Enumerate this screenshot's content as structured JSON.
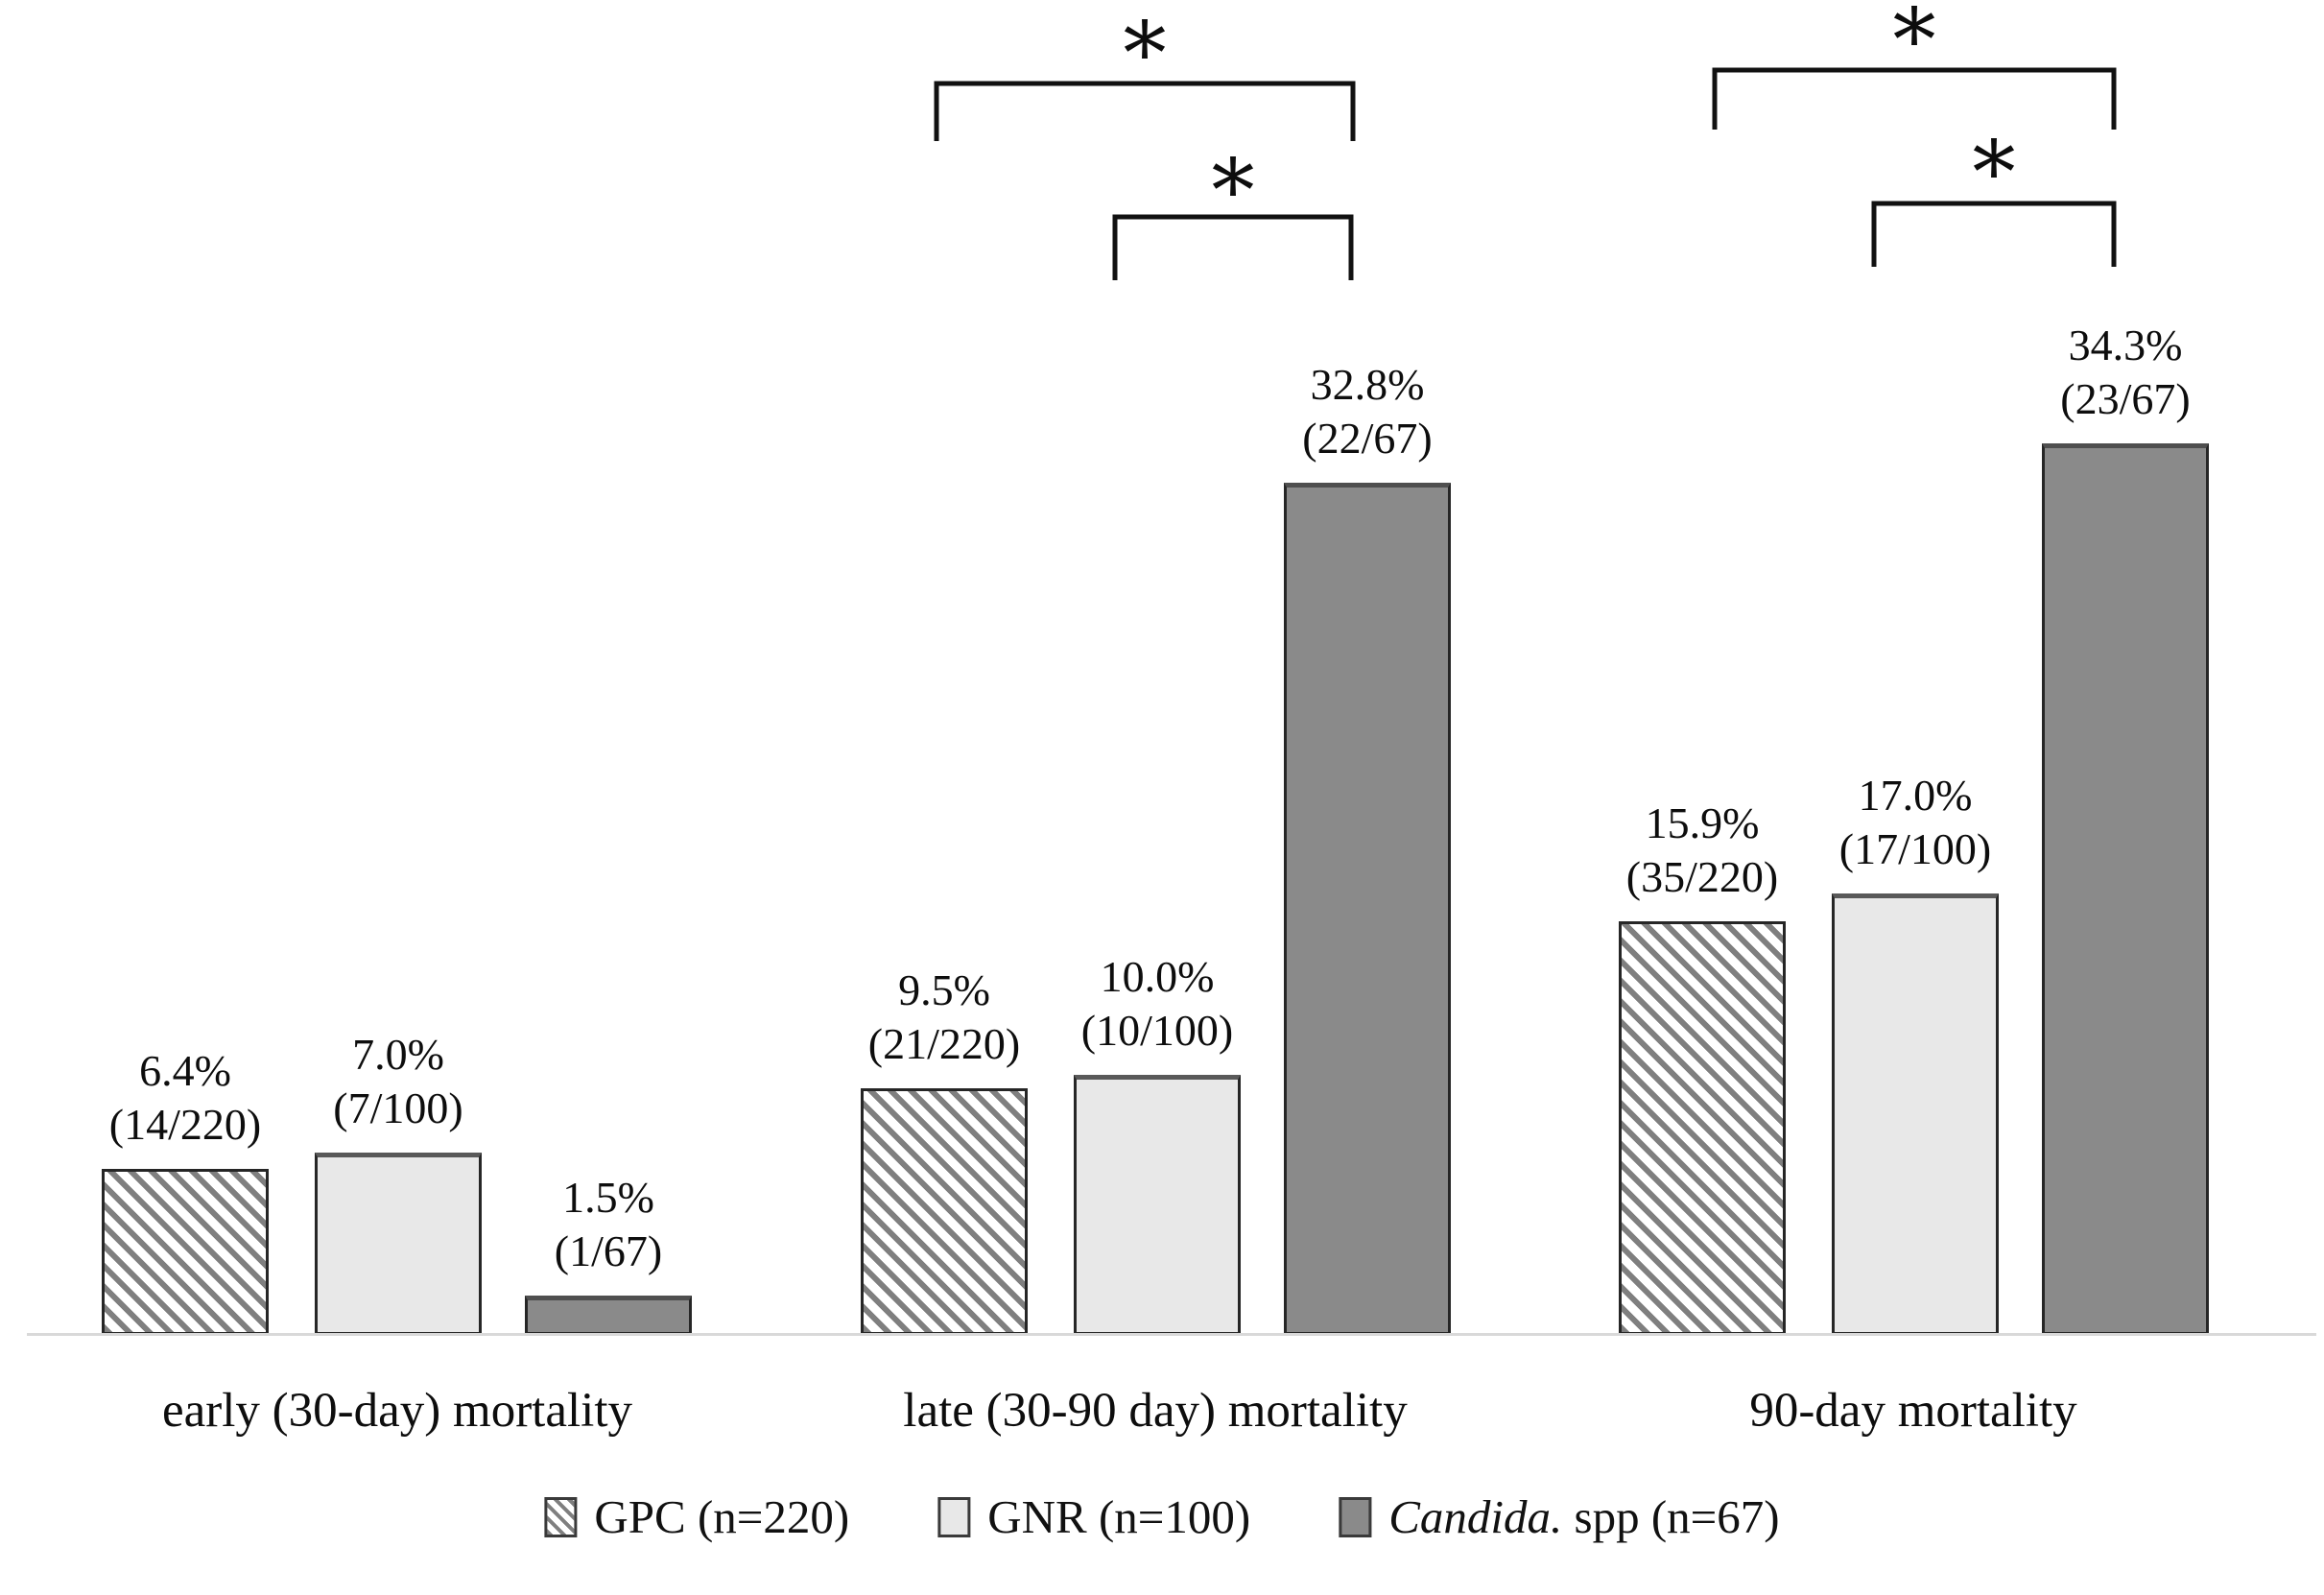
{
  "figure": {
    "background": "#ffffff",
    "axis_line_color": "#d9d9d9",
    "bar_border_color": "#262626",
    "significance_symbol_color": "#0d0d0d"
  },
  "chart_data": {
    "type": "bar",
    "title": "",
    "xlabel": "",
    "ylabel": "",
    "ylim": [
      0,
      40
    ],
    "grid": false,
    "legend_position": "bottom",
    "categories": [
      "early (30-day) mortality",
      "late (30-90 day) mortality",
      "90-day mortality"
    ],
    "series": [
      {
        "name": "GPC (n=220)",
        "style": "hatched",
        "fill": "#ffffff",
        "hatch_color": "#7f7f7f",
        "values": [
          6.4,
          9.5,
          15.9
        ],
        "value_labels": [
          "6.4%",
          "9.5%",
          "15.9%"
        ],
        "fraction_labels": [
          "(14/220)",
          "(21/220)",
          "(35/220)"
        ]
      },
      {
        "name": "GNR (n=100)",
        "style": "light",
        "fill": "#e8e8e8",
        "values": [
          7.0,
          10.0,
          17.0
        ],
        "value_labels": [
          "7.0%",
          "10.0%",
          "17.0%"
        ],
        "fraction_labels": [
          "(7/100)",
          "(10/100)",
          "(17/100)"
        ]
      },
      {
        "name": "Candida. spp (n=67)",
        "style": "dark",
        "fill": "#8a8a8a",
        "values": [
          1.5,
          32.8,
          34.3
        ],
        "value_labels": [
          "1.5%",
          "32.8%",
          "34.3%"
        ],
        "fraction_labels": [
          "(1/67)",
          "(22/67)",
          "(23/67)"
        ]
      }
    ]
  },
  "annotations": {
    "asterisks": [
      {
        "symbol": "*"
      },
      {
        "symbol": "*"
      },
      {
        "symbol": "*"
      },
      {
        "symbol": "*"
      }
    ]
  },
  "legend": {
    "items": [
      {
        "swatch": "hatched",
        "label": "GPC (n=220)"
      },
      {
        "swatch": "light",
        "label": "GNR (n=100)"
      },
      {
        "swatch": "dark",
        "label_italic": "Candida.",
        "label_rest": " spp (n=67)"
      }
    ]
  }
}
